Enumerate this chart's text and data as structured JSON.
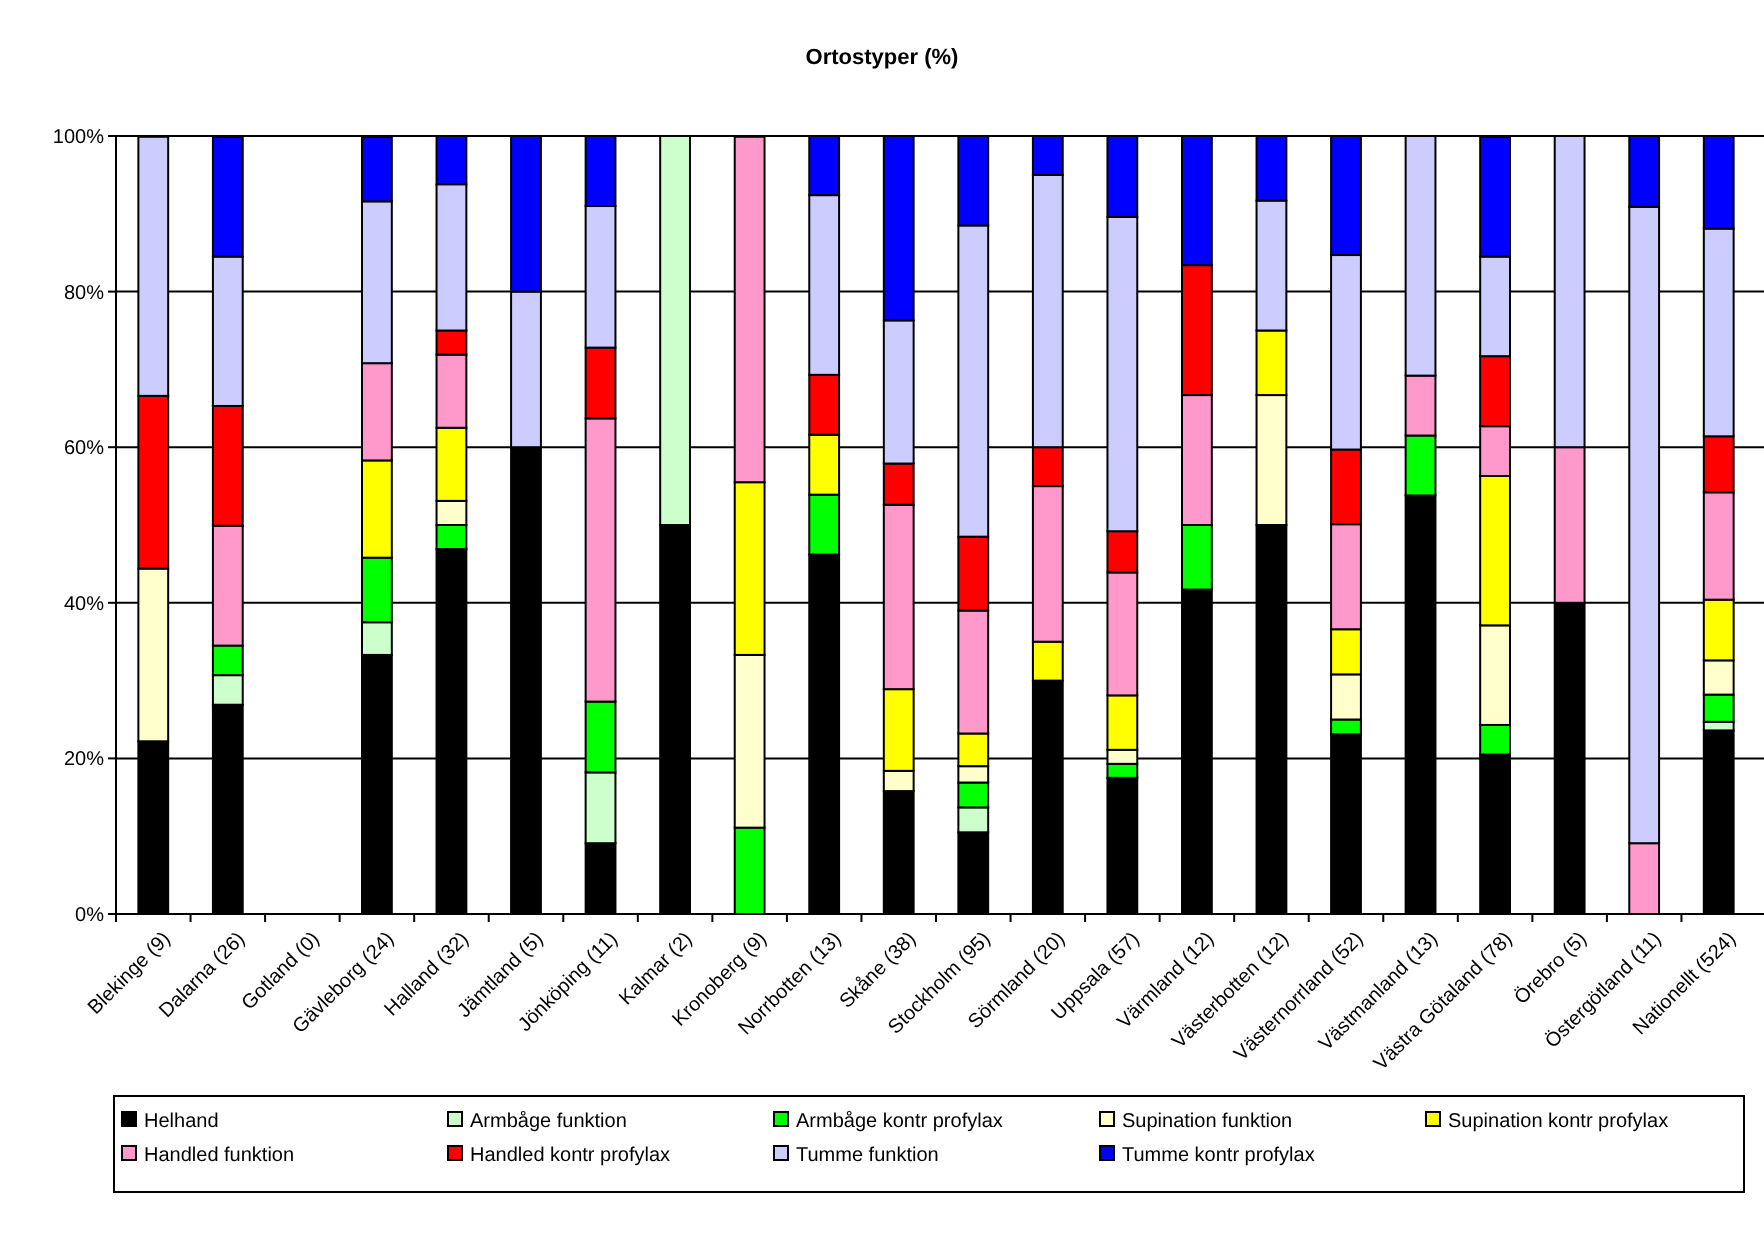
{
  "chart_data": {
    "type": "bar",
    "title": "Ortostyper (%)",
    "stacked": true,
    "grid": "y",
    "legend": "bottom",
    "categories": [
      "Blekinge (9)",
      "Dalarna (26)",
      "Gotland (0)",
      "Gävleborg (24)",
      "Halland (32)",
      "Jämtland (5)",
      "Jönköping (11)",
      "Kalmar (2)",
      "Kronoberg (9)",
      "Norrbotten (13)",
      "Skåne (38)",
      "Stockholm (95)",
      "Sörmland (20)",
      "Uppsala (57)",
      "Värmland (12)",
      "Västerbotten (12)",
      "Västernorrland (52)",
      "Västmanland (13)",
      "Västra Götaland (78)",
      "Örebro (5)",
      "Östergötland (11)",
      "Nationellt (524)"
    ],
    "ylim": [
      0,
      100
    ],
    "yticks": [
      {
        "value": 0,
        "label": "0%"
      },
      {
        "value": 20,
        "label": "20%"
      },
      {
        "value": 40,
        "label": "40%"
      },
      {
        "value": 60,
        "label": "60%"
      },
      {
        "value": 80,
        "label": "80%"
      },
      {
        "value": 100,
        "label": "100%"
      }
    ],
    "series": [
      {
        "name": "Helhand",
        "color": "#000000",
        "values": [
          22.2,
          26.9,
          0,
          33.3,
          46.9,
          60,
          9.1,
          50,
          0,
          46.2,
          15.8,
          10.5,
          30,
          17.5,
          41.7,
          50,
          23.1,
          53.8,
          20.5,
          40,
          0,
          23.6
        ]
      },
      {
        "name": "Armbåge funktion",
        "color": "#ccffcc",
        "values": [
          0,
          3.8,
          0,
          4.2,
          0,
          0,
          9.1,
          50,
          0,
          0,
          0,
          3.2,
          0,
          0,
          0,
          0,
          0,
          0,
          0,
          0,
          0,
          1.1
        ]
      },
      {
        "name": "Armbåge kontr profylax",
        "color": "#00ff00",
        "values": [
          0,
          3.8,
          0,
          8.3,
          3.1,
          0,
          9.1,
          0,
          11.1,
          7.7,
          0,
          3.2,
          0,
          1.8,
          8.3,
          0,
          1.9,
          7.7,
          3.8,
          0,
          0,
          3.5
        ]
      },
      {
        "name": "Supination funktion",
        "color": "#ffffcc",
        "values": [
          22.2,
          0,
          0,
          0,
          3.1,
          0,
          0,
          0,
          22.2,
          0,
          2.6,
          2.1,
          0,
          1.8,
          0,
          16.7,
          5.8,
          0,
          12.8,
          0,
          0,
          4.4
        ]
      },
      {
        "name": "Supination kontr profylax",
        "color": "#ffff00",
        "values": [
          0,
          0,
          0,
          12.5,
          9.4,
          0,
          0,
          0,
          22.2,
          7.7,
          10.5,
          4.2,
          5,
          7,
          0,
          8.3,
          5.8,
          0,
          19.2,
          0,
          0,
          7.8
        ]
      },
      {
        "name": "Handled funktion",
        "color": "#ff99cc",
        "values": [
          0,
          15.4,
          0,
          12.5,
          9.4,
          0,
          36.4,
          0,
          44.4,
          0,
          23.7,
          15.8,
          20,
          15.8,
          16.7,
          0,
          13.5,
          7.7,
          6.4,
          20,
          9.1,
          13.8
        ]
      },
      {
        "name": "Handled kontr profylax",
        "color": "#ff0000",
        "values": [
          22.2,
          15.4,
          0,
          0,
          3.1,
          0,
          9.1,
          0,
          0,
          7.7,
          5.3,
          9.5,
          5,
          5.3,
          16.7,
          0,
          9.6,
          0,
          9,
          0,
          0,
          7.2
        ]
      },
      {
        "name": "Tumme funktion",
        "color": "#ccccff",
        "values": [
          33.3,
          19.2,
          0,
          20.8,
          18.8,
          20,
          18.2,
          0,
          0,
          23.1,
          18.4,
          40,
          35,
          40.4,
          0,
          16.7,
          25,
          30.8,
          12.8,
          40,
          81.8,
          26.7
        ]
      },
      {
        "name": "Tumme kontr profylax",
        "color": "#0000ff",
        "values": [
          0,
          15.4,
          0,
          8.3,
          6.2,
          20,
          9,
          0,
          0,
          7.6,
          23.7,
          11.5,
          5,
          10.4,
          16.6,
          8.3,
          15.3,
          0,
          15.4,
          0,
          9.1,
          11.9
        ]
      }
    ]
  }
}
